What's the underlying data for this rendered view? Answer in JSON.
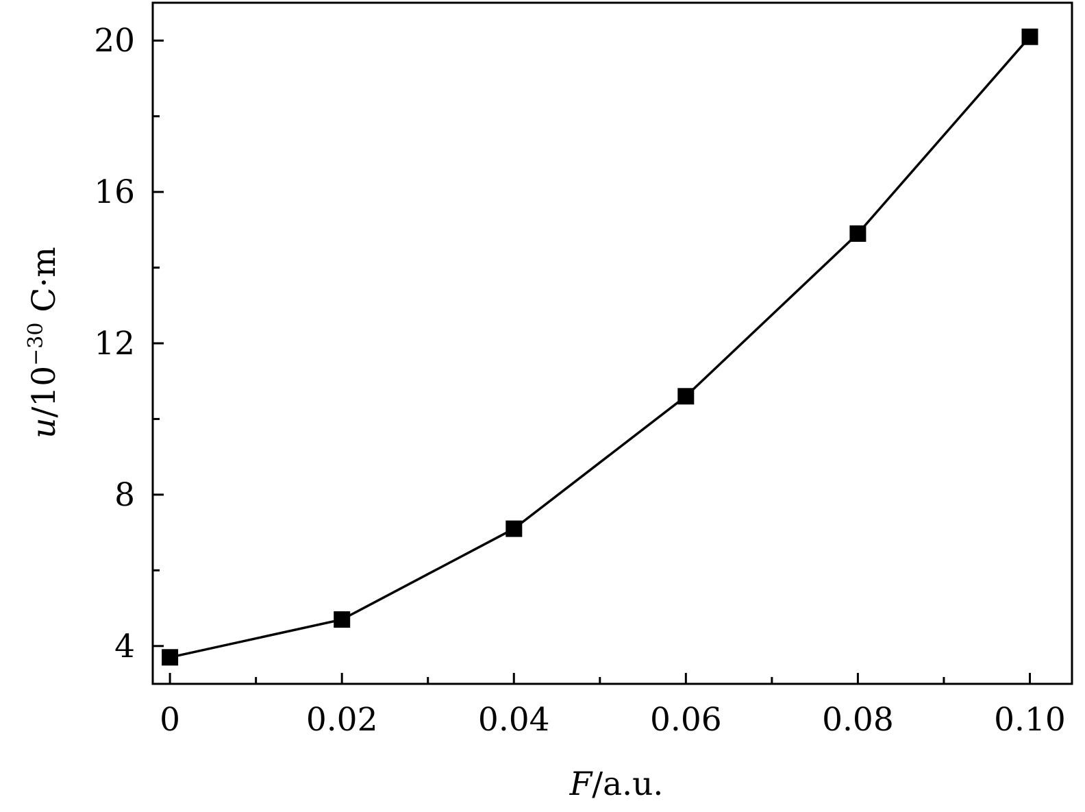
{
  "chart_data": {
    "type": "line",
    "xlabel": {
      "variable": "F",
      "unit": "/a.u."
    },
    "ylabel": {
      "variable": "u",
      "unit_prefix": "/10",
      "exponent": "−30",
      "unit_suffix": " C·m"
    },
    "xlim": [
      -0.002,
      0.1049
    ],
    "ylim": [
      3.0,
      21.0
    ],
    "x_ticks": [
      0,
      0.02,
      0.04,
      0.06,
      0.08,
      0.1
    ],
    "x_tick_labels": [
      "0",
      "0.02",
      "0.04",
      "0.06",
      "0.08",
      "0.10"
    ],
    "x_minor_ticks": [
      0.01,
      0.03,
      0.05,
      0.07,
      0.09
    ],
    "y_ticks": [
      4,
      8,
      12,
      16,
      20
    ],
    "y_tick_labels": [
      "4",
      "8",
      "12",
      "16",
      "20"
    ],
    "y_minor_ticks": [
      6,
      10,
      14,
      18
    ],
    "grid": false,
    "series": [
      {
        "marker": "square",
        "color": "#000000",
        "x": [
          0,
          0.02,
          0.04,
          0.06,
          0.08,
          0.1
        ],
        "y": [
          3.7,
          4.7,
          7.1,
          10.6,
          14.9,
          20.1
        ]
      }
    ]
  }
}
